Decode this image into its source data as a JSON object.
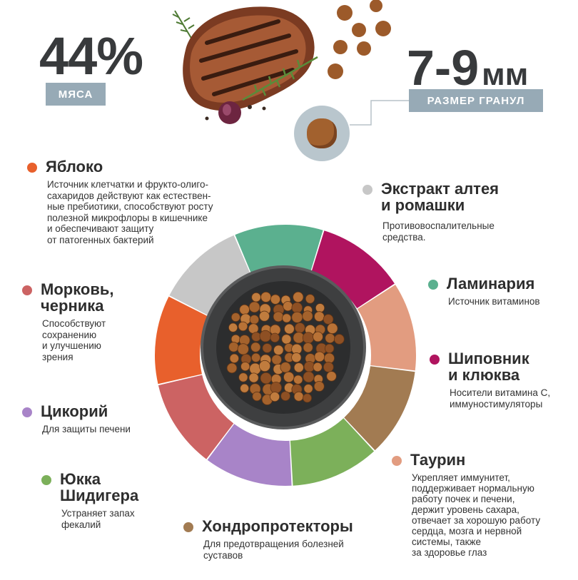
{
  "stats": {
    "meat_percent": "44%",
    "meat_label": "МЯСА",
    "size_value": "7-9",
    "size_unit": "мм",
    "size_label": "РАЗМЕР ГРАНУЛ"
  },
  "ingredients": [
    {
      "id": "apple",
      "title": "Яблоко",
      "desc": "Источник клетчатки и фрукто-олиго-\nсахаридов  действуют как естествен-\nные пребиотики, способствуют росту\nполезной микрофлоры в кишечнике\nи обеспечивают защиту\nот патогенных бактерий",
      "color": "#e8602c"
    },
    {
      "id": "marshmallow",
      "title": "Экстракт алтея\nи ромашки",
      "desc": "Противовоспалительные\nсредства.",
      "color": "#c7c7c7"
    },
    {
      "id": "kelp",
      "title": "Ламинария",
      "desc": "Источник витаминов",
      "color": "#5bb08f"
    },
    {
      "id": "rosehip",
      "title": "Шиповник\nи клюква",
      "desc": "Носители витамина С,\nиммуностимуляторы",
      "color": "#b0145f"
    },
    {
      "id": "taurine",
      "title": "Таурин",
      "desc": "Укрепляет иммунитет,\nподдерживает нормальную\nработу почек и печени,\nдержит уровень сахара,\nотвечает за хорошую работу\nсердца, мозга и нервной\nсистемы, также\nза здоровье глаз",
      "color": "#e29c80"
    },
    {
      "id": "chondro",
      "title": "Хондропротекторы",
      "desc": "Для предотвращения болезней\nсуставов",
      "color": "#a27b52"
    },
    {
      "id": "yucca",
      "title": "Юкка\nШидигера",
      "desc": "Устраняет запах\nфекалий",
      "color": "#7cb05a"
    },
    {
      "id": "chicory",
      "title": "Цикорий",
      "desc": "Для защиты печени",
      "color": "#a884c8"
    },
    {
      "id": "carrot",
      "title": "Морковь,\nчерника",
      "desc": "Способствуют\nсохранению\nи улучшению\nзрения",
      "color": "#cc6363"
    }
  ]
}
